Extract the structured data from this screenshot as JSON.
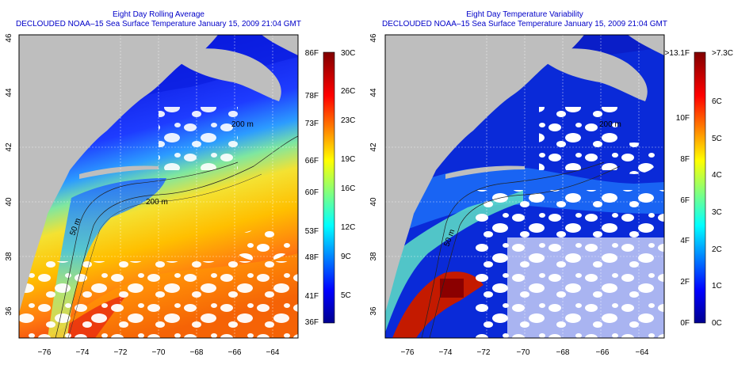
{
  "colors": {
    "land": "#bebebe",
    "title": "#0000c8",
    "cloud": "#ffffff"
  },
  "panels": [
    {
      "id": "average",
      "title_line1": "Eight Day Rolling Average",
      "title_line2": "DECLOUDED NOAA–15 Sea Surface Temperature January 15, 2009 21:04 GMT",
      "lon_ticks": [
        "−76",
        "−74",
        "−72",
        "−70",
        "−68",
        "−66",
        "−64"
      ],
      "lat_ticks": [
        "46",
        "44",
        "42",
        "40",
        "38",
        "36"
      ],
      "contour_labels": [
        "50 m",
        "200 m",
        "200 m"
      ],
      "colorbar_left": [
        "86F",
        "78F",
        "73F",
        "66F",
        "60F",
        "53F",
        "48F",
        "41F",
        "36F"
      ],
      "colorbar_right": [
        "30C",
        "26C",
        "23C",
        "19C",
        "16C",
        "12C",
        "9C",
        "5C"
      ]
    },
    {
      "id": "variability",
      "title_line1": "Eight Day Temperature Variability",
      "title_line2": "DECLOUDED NOAA–15 Sea Surface Temperature January 15, 2009 21:04 GMT",
      "lon_ticks": [
        "−76",
        "−74",
        "−72",
        "−70",
        "−68",
        "−66",
        "−64"
      ],
      "lat_ticks": [
        "46",
        "44",
        "42",
        "40",
        "38",
        "36"
      ],
      "contour_labels": [
        "50 m",
        "200 m"
      ],
      "colorbar_left": [
        ">13.1F",
        "10F",
        "8F",
        "6F",
        "4F",
        "2F",
        "0F"
      ],
      "colorbar_right": [
        ">7.3C",
        "6C",
        "5C",
        "4C",
        "3C",
        "2C",
        "1C",
        "0C"
      ]
    }
  ]
}
